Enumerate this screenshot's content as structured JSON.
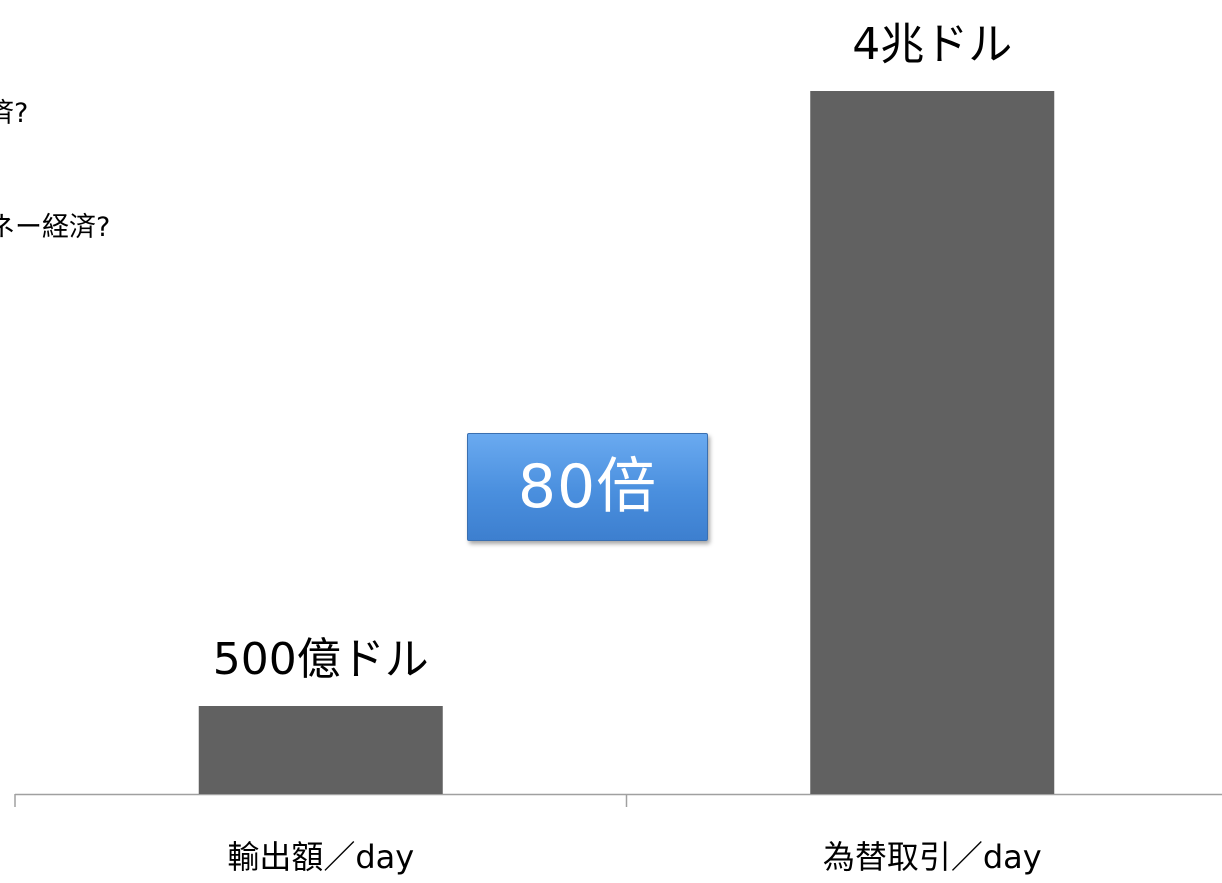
{
  "background_text": {
    "line1": "経済?",
    "line2": "ネー経済?"
  },
  "callout": {
    "label": "80倍",
    "color": "#4a8fde"
  },
  "chart_data": {
    "type": "bar",
    "categories": [
      "輸出額／day",
      "為替取引／day"
    ],
    "values": [
      500,
      40000
    ],
    "value_unit": "億ドル",
    "data_labels": [
      "500億ドル",
      "4兆ドル"
    ],
    "title": "",
    "xlabel": "",
    "ylabel": "",
    "ylim": [
      0,
      40000
    ],
    "grid": false,
    "legend": "none",
    "bar_color": "#616161"
  }
}
